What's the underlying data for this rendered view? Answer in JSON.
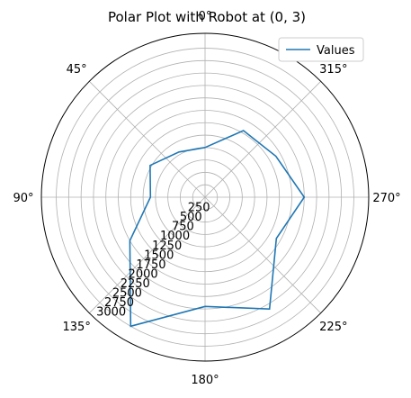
{
  "chart_data": {
    "type": "line",
    "projection": "polar",
    "title": "Polar Plot with Robot at (0, 3)",
    "theta_zero_location": "top",
    "theta_direction": "counterclockwise",
    "theta_unit": "degrees",
    "theta_ticks": [
      "0°",
      "45°",
      "90°",
      "135°",
      "180°",
      "225°",
      "270°",
      "315°"
    ],
    "theta_tick_values": [
      0,
      45,
      90,
      135,
      180,
      225,
      270,
      315
    ],
    "r_ticks": [
      "250",
      "500",
      "750",
      "1000",
      "1250",
      "1500",
      "1750",
      "2000",
      "2250",
      "2500",
      "2750",
      "3000"
    ],
    "r_tick_values": [
      250,
      500,
      750,
      1000,
      1250,
      1500,
      1750,
      2000,
      2250,
      2500,
      2750,
      3000
    ],
    "rlim": [
      0,
      3300
    ],
    "r_label_angle_deg": 140,
    "grid": true,
    "legend_position": "top-right",
    "series": [
      {
        "name": "Values",
        "color": "#1f77b4",
        "theta": [
          0,
          30,
          60,
          90,
          120,
          150,
          180,
          210,
          240,
          270,
          300,
          330,
          360
        ],
        "r": [
          1000,
          1050,
          1280,
          1100,
          1750,
          3000,
          2200,
          2600,
          1660,
          2000,
          1650,
          1550,
          1000
        ]
      }
    ]
  }
}
